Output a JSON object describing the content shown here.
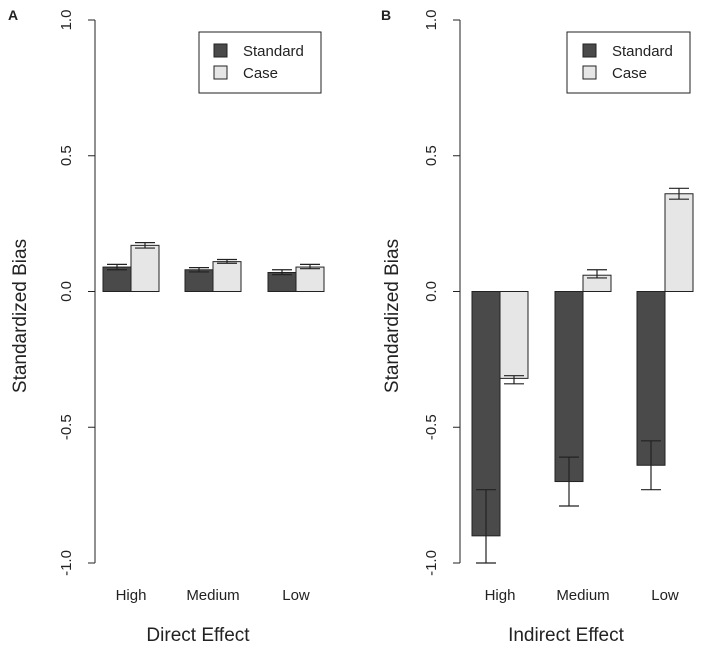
{
  "colors": {
    "standard": "#4a4a4a",
    "case": "#e6e6e6",
    "stroke": "#222222",
    "background": "#ffffff"
  },
  "chart_data": [
    {
      "type": "bar",
      "panel": "A",
      "categories": [
        "High",
        "Medium",
        "Low"
      ],
      "series": [
        {
          "name": "Standard",
          "values": [
            0.09,
            0.08,
            0.07
          ],
          "err_low": [
            0.08,
            0.072,
            0.062
          ],
          "err_high": [
            0.1,
            0.088,
            0.08
          ]
        },
        {
          "name": "Case",
          "values": [
            0.17,
            0.11,
            0.09
          ],
          "err_low": [
            0.16,
            0.104,
            0.084
          ],
          "err_high": [
            0.18,
            0.118,
            0.1
          ]
        }
      ],
      "title": "",
      "xlabel": "Direct Effect",
      "ylabel": "Standardized Bias",
      "ylim": [
        -1.0,
        1.0
      ],
      "yticks": [
        "-1.0",
        "-0.5",
        "0.0",
        "0.5",
        "1.0"
      ],
      "legend_position": "top-right"
    },
    {
      "type": "bar",
      "panel": "B",
      "categories": [
        "High",
        "Medium",
        "Low"
      ],
      "series": [
        {
          "name": "Standard",
          "values": [
            -0.9,
            -0.7,
            -0.64
          ],
          "err_low": [
            -1.0,
            -0.79,
            -0.73
          ],
          "err_high": [
            -0.73,
            -0.61,
            -0.55
          ]
        },
        {
          "name": "Case",
          "values": [
            -0.32,
            0.06,
            0.36
          ],
          "err_low": [
            -0.34,
            0.05,
            0.34
          ],
          "err_high": [
            -0.31,
            0.08,
            0.38
          ]
        }
      ],
      "title": "",
      "xlabel": "Indirect Effect",
      "ylabel": "Standardized Bias",
      "ylim": [
        -1.0,
        1.0
      ],
      "yticks": [
        "-1.0",
        "-0.5",
        "0.0",
        "0.5",
        "1.0"
      ],
      "legend_position": "top-right"
    }
  ]
}
